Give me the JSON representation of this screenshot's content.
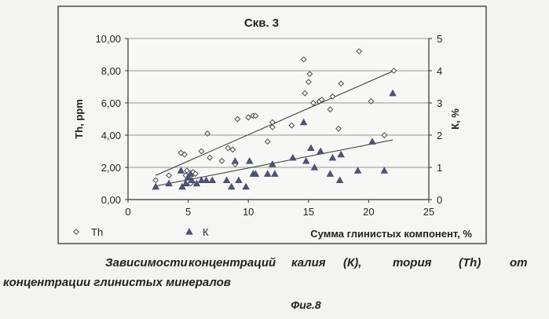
{
  "chart_data": {
    "type": "scatter",
    "title": "Скв. 3",
    "xlabel": "Сумма глинистых компонент, %",
    "ylabel_left": "Th, ppm",
    "ylabel_right": "К, %",
    "xlim": [
      0,
      25
    ],
    "ylim_left": [
      0,
      10
    ],
    "ylim_right": [
      0,
      5
    ],
    "xticks": [
      "0",
      "5",
      "10",
      "15",
      "20",
      "25"
    ],
    "yticks_left": [
      "0,00",
      "2,00",
      "4,00",
      "6,00",
      "8,00",
      "10,00"
    ],
    "yticks_right": [
      "0",
      "1",
      "2",
      "3",
      "4",
      "5"
    ],
    "grid": "horizontal",
    "legend": "bottom",
    "series": [
      {
        "name": "Th",
        "axis": "left",
        "marker": "diamond-open",
        "points": [
          [
            2.3,
            1.2
          ],
          [
            3.4,
            1.5
          ],
          [
            4.4,
            2.9
          ],
          [
            4.7,
            2.8
          ],
          [
            4.9,
            1.8
          ],
          [
            5.4,
            1.7
          ],
          [
            4.8,
            1.5
          ],
          [
            5.6,
            1.6
          ],
          [
            4.9,
            1.1
          ],
          [
            5.2,
            1.0
          ],
          [
            6.1,
            3.0
          ],
          [
            6.6,
            4.1
          ],
          [
            6.8,
            2.6
          ],
          [
            7.8,
            2.4
          ],
          [
            8.3,
            3.2
          ],
          [
            8.7,
            3.1
          ],
          [
            8.9,
            2.2
          ],
          [
            9.1,
            5.0
          ],
          [
            10.0,
            5.1
          ],
          [
            10.4,
            5.2
          ],
          [
            10.6,
            5.2
          ],
          [
            11.6,
            3.6
          ],
          [
            12.0,
            4.8
          ],
          [
            12.0,
            4.5
          ],
          [
            13.6,
            4.6
          ],
          [
            14.6,
            8.7
          ],
          [
            14.7,
            6.6
          ],
          [
            15.0,
            7.3
          ],
          [
            15.1,
            7.8
          ],
          [
            15.4,
            6.0
          ],
          [
            15.9,
            6.1
          ],
          [
            16.1,
            6.2
          ],
          [
            16.8,
            5.6
          ],
          [
            17.0,
            6.4
          ],
          [
            17.5,
            4.4
          ],
          [
            17.7,
            7.2
          ],
          [
            19.2,
            9.2
          ],
          [
            20.2,
            6.1
          ],
          [
            21.3,
            4.0
          ],
          [
            22.1,
            8.0
          ]
        ],
        "trendline": [
          [
            2.3,
            1.5
          ],
          [
            22.1,
            8.0
          ]
        ]
      },
      {
        "name": "К",
        "axis": "right",
        "marker": "triangle-filled",
        "points": [
          [
            2.3,
            0.4
          ],
          [
            3.4,
            0.5
          ],
          [
            4.4,
            0.9
          ],
          [
            4.5,
            0.4
          ],
          [
            4.8,
            0.5
          ],
          [
            5.0,
            0.7
          ],
          [
            5.2,
            0.8
          ],
          [
            5.3,
            0.6
          ],
          [
            5.7,
            0.5
          ],
          [
            6.1,
            0.6
          ],
          [
            6.5,
            0.6
          ],
          [
            7.0,
            0.6
          ],
          [
            8.2,
            0.6
          ],
          [
            8.6,
            0.4
          ],
          [
            8.9,
            1.2
          ],
          [
            9.2,
            0.6
          ],
          [
            9.8,
            0.4
          ],
          [
            10.1,
            1.2
          ],
          [
            10.4,
            0.8
          ],
          [
            10.6,
            0.8
          ],
          [
            11.6,
            0.8
          ],
          [
            12.0,
            1.1
          ],
          [
            12.2,
            0.8
          ],
          [
            13.7,
            1.3
          ],
          [
            14.6,
            2.4
          ],
          [
            14.8,
            1.2
          ],
          [
            15.2,
            1.6
          ],
          [
            15.5,
            1.0
          ],
          [
            16.0,
            1.5
          ],
          [
            16.8,
            0.8
          ],
          [
            17.0,
            1.3
          ],
          [
            17.6,
            0.6
          ],
          [
            17.7,
            1.4
          ],
          [
            19.1,
            0.9
          ],
          [
            20.3,
            1.8
          ],
          [
            21.3,
            0.9
          ],
          [
            22.0,
            3.3
          ]
        ],
        "trendline": [
          [
            2.3,
            0.42
          ],
          [
            22.0,
            1.85
          ]
        ]
      }
    ]
  },
  "caption": {
    "line1_parts": [
      "Зависимости",
      "концентраций",
      "калия",
      "(К),",
      "тория",
      "(Th)",
      "от"
    ],
    "line2": "концентрации глинистых минералов",
    "figure": "Фиг.8"
  }
}
